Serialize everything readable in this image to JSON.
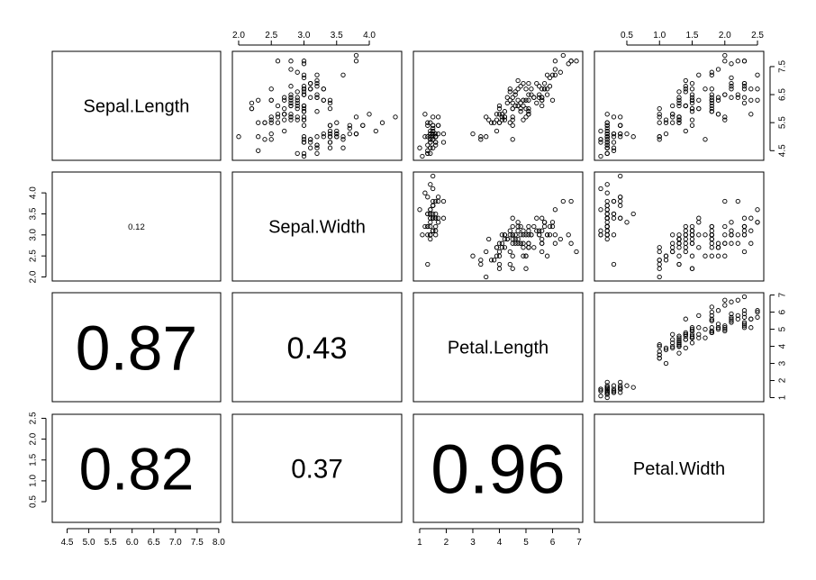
{
  "chart_data": {
    "type": "scatter",
    "variables": [
      "Sepal.Length",
      "Sepal.Width",
      "Petal.Length",
      "Petal.Width"
    ],
    "ranges": [
      [
        4.3,
        7.9
      ],
      [
        2.0,
        4.4
      ],
      [
        1.0,
        6.9
      ],
      [
        0.1,
        2.5
      ]
    ],
    "ticks": [
      [
        4.5,
        5.0,
        5.5,
        6.0,
        6.5,
        7.0,
        7.5,
        8.0
      ],
      [
        2.0,
        2.5,
        3.0,
        3.5,
        4.0
      ],
      [
        1,
        2,
        3,
        4,
        5,
        6,
        7
      ],
      [
        0.5,
        1.0,
        1.5,
        2.0,
        2.5
      ]
    ],
    "tick_labels": [
      [
        "4.5",
        "5.0",
        "5.5",
        "6.0",
        "6.5",
        "7.0",
        "7.5",
        "8.0"
      ],
      [
        "2.0",
        "2.5",
        "3.0",
        "3.5",
        "4.0"
      ],
      [
        "1",
        "2",
        "3",
        "4",
        "5",
        "6",
        "7"
      ],
      [
        "0.5",
        "1.0",
        "1.5",
        "2.0",
        "2.5"
      ]
    ],
    "right_axis_ticks": [
      4.5,
      5.5,
      6.5,
      7.5
    ],
    "right_axis_tick_labels": [
      "4.5",
      "5.5",
      "6.5",
      "7.5"
    ],
    "correlations": [
      {
        "row": 1,
        "col": 0,
        "label": "0.12",
        "value": 0.12
      },
      {
        "row": 2,
        "col": 0,
        "label": "0.87",
        "value": 0.87
      },
      {
        "row": 2,
        "col": 1,
        "label": "0.43",
        "value": 0.43
      },
      {
        "row": 3,
        "col": 0,
        "label": "0.82",
        "value": 0.82
      },
      {
        "row": 3,
        "col": 1,
        "label": "0.37",
        "value": 0.37
      },
      {
        "row": 3,
        "col": 2,
        "label": "0.96",
        "value": 0.96
      }
    ],
    "points": [
      [
        5.1,
        3.5,
        1.4,
        0.2
      ],
      [
        4.9,
        3.0,
        1.4,
        0.2
      ],
      [
        4.7,
        3.2,
        1.3,
        0.2
      ],
      [
        4.6,
        3.1,
        1.5,
        0.2
      ],
      [
        5.0,
        3.6,
        1.4,
        0.2
      ],
      [
        5.4,
        3.9,
        1.7,
        0.4
      ],
      [
        4.6,
        3.4,
        1.4,
        0.3
      ],
      [
        5.0,
        3.4,
        1.5,
        0.2
      ],
      [
        4.4,
        2.9,
        1.4,
        0.2
      ],
      [
        4.9,
        3.1,
        1.5,
        0.1
      ],
      [
        5.4,
        3.7,
        1.5,
        0.2
      ],
      [
        4.8,
        3.4,
        1.6,
        0.2
      ],
      [
        4.8,
        3.0,
        1.4,
        0.1
      ],
      [
        4.3,
        3.0,
        1.1,
        0.1
      ],
      [
        5.8,
        4.0,
        1.2,
        0.2
      ],
      [
        5.7,
        4.4,
        1.5,
        0.4
      ],
      [
        5.4,
        3.9,
        1.3,
        0.4
      ],
      [
        5.1,
        3.5,
        1.4,
        0.3
      ],
      [
        5.7,
        3.8,
        1.7,
        0.3
      ],
      [
        5.1,
        3.8,
        1.5,
        0.3
      ],
      [
        5.4,
        3.4,
        1.7,
        0.2
      ],
      [
        5.1,
        3.7,
        1.5,
        0.4
      ],
      [
        4.6,
        3.6,
        1.0,
        0.2
      ],
      [
        5.1,
        3.3,
        1.7,
        0.5
      ],
      [
        4.8,
        3.4,
        1.9,
        0.2
      ],
      [
        5.0,
        3.0,
        1.6,
        0.2
      ],
      [
        5.0,
        3.4,
        1.6,
        0.4
      ],
      [
        5.2,
        3.5,
        1.5,
        0.2
      ],
      [
        5.2,
        3.4,
        1.4,
        0.2
      ],
      [
        4.7,
        3.2,
        1.6,
        0.2
      ],
      [
        4.8,
        3.1,
        1.6,
        0.2
      ],
      [
        5.4,
        3.4,
        1.5,
        0.4
      ],
      [
        5.2,
        4.1,
        1.5,
        0.1
      ],
      [
        5.5,
        4.2,
        1.4,
        0.2
      ],
      [
        4.9,
        3.1,
        1.5,
        0.2
      ],
      [
        5.0,
        3.2,
        1.2,
        0.2
      ],
      [
        5.5,
        3.5,
        1.3,
        0.2
      ],
      [
        4.9,
        3.6,
        1.4,
        0.1
      ],
      [
        4.4,
        3.0,
        1.3,
        0.2
      ],
      [
        5.1,
        3.4,
        1.5,
        0.2
      ],
      [
        5.0,
        3.5,
        1.3,
        0.3
      ],
      [
        4.5,
        2.3,
        1.3,
        0.3
      ],
      [
        4.4,
        3.2,
        1.3,
        0.2
      ],
      [
        5.0,
        3.5,
        1.6,
        0.6
      ],
      [
        5.1,
        3.8,
        1.9,
        0.4
      ],
      [
        4.8,
        3.0,
        1.4,
        0.3
      ],
      [
        5.1,
        3.8,
        1.6,
        0.2
      ],
      [
        4.6,
        3.2,
        1.4,
        0.2
      ],
      [
        5.3,
        3.7,
        1.5,
        0.2
      ],
      [
        5.0,
        3.3,
        1.4,
        0.2
      ],
      [
        7.0,
        3.2,
        4.7,
        1.4
      ],
      [
        6.4,
        3.2,
        4.5,
        1.5
      ],
      [
        6.9,
        3.1,
        4.9,
        1.5
      ],
      [
        5.5,
        2.3,
        4.0,
        1.3
      ],
      [
        6.5,
        2.8,
        4.6,
        1.5
      ],
      [
        5.7,
        2.8,
        4.5,
        1.3
      ],
      [
        6.3,
        3.3,
        4.7,
        1.6
      ],
      [
        4.9,
        2.4,
        3.3,
        1.0
      ],
      [
        6.6,
        2.9,
        4.6,
        1.3
      ],
      [
        5.2,
        2.7,
        3.9,
        1.4
      ],
      [
        5.0,
        2.0,
        3.5,
        1.0
      ],
      [
        5.9,
        3.0,
        4.2,
        1.5
      ],
      [
        6.0,
        2.2,
        4.0,
        1.0
      ],
      [
        6.1,
        2.9,
        4.7,
        1.4
      ],
      [
        5.6,
        2.9,
        3.6,
        1.3
      ],
      [
        6.7,
        3.1,
        4.4,
        1.4
      ],
      [
        5.6,
        3.0,
        4.5,
        1.5
      ],
      [
        5.8,
        2.7,
        4.1,
        1.0
      ],
      [
        6.2,
        2.2,
        4.5,
        1.5
      ],
      [
        5.6,
        2.5,
        3.9,
        1.1
      ],
      [
        5.9,
        3.2,
        4.8,
        1.8
      ],
      [
        6.1,
        2.8,
        4.0,
        1.3
      ],
      [
        6.3,
        2.5,
        4.9,
        1.5
      ],
      [
        6.1,
        2.8,
        4.7,
        1.2
      ],
      [
        6.4,
        2.9,
        4.3,
        1.3
      ],
      [
        6.6,
        3.0,
        4.4,
        1.4
      ],
      [
        6.8,
        2.8,
        4.8,
        1.4
      ],
      [
        6.7,
        3.0,
        5.0,
        1.7
      ],
      [
        6.0,
        2.9,
        4.5,
        1.5
      ],
      [
        5.7,
        2.6,
        3.5,
        1.0
      ],
      [
        5.5,
        2.4,
        3.8,
        1.1
      ],
      [
        5.5,
        2.4,
        3.7,
        1.0
      ],
      [
        5.8,
        2.7,
        3.9,
        1.2
      ],
      [
        6.0,
        2.7,
        5.1,
        1.6
      ],
      [
        5.4,
        3.0,
        4.5,
        1.5
      ],
      [
        6.0,
        3.4,
        4.5,
        1.6
      ],
      [
        6.7,
        3.1,
        4.7,
        1.5
      ],
      [
        6.3,
        2.3,
        4.4,
        1.3
      ],
      [
        5.6,
        3.0,
        4.1,
        1.3
      ],
      [
        5.5,
        2.5,
        4.0,
        1.3
      ],
      [
        5.5,
        2.6,
        4.4,
        1.2
      ],
      [
        6.1,
        3.0,
        4.6,
        1.4
      ],
      [
        5.8,
        2.6,
        4.0,
        1.2
      ],
      [
        5.0,
        2.3,
        3.3,
        1.0
      ],
      [
        5.6,
        2.7,
        4.2,
        1.3
      ],
      [
        5.7,
        3.0,
        4.2,
        1.2
      ],
      [
        5.7,
        2.9,
        4.2,
        1.3
      ],
      [
        6.2,
        2.9,
        4.3,
        1.3
      ],
      [
        5.1,
        2.5,
        3.0,
        1.1
      ],
      [
        5.7,
        2.8,
        4.1,
        1.3
      ],
      [
        6.3,
        3.3,
        6.0,
        2.5
      ],
      [
        5.8,
        2.7,
        5.1,
        1.9
      ],
      [
        7.1,
        3.0,
        5.9,
        2.1
      ],
      [
        6.3,
        2.9,
        5.6,
        1.8
      ],
      [
        6.5,
        3.0,
        5.8,
        2.2
      ],
      [
        7.6,
        3.0,
        6.6,
        2.1
      ],
      [
        4.9,
        2.5,
        4.5,
        1.7
      ],
      [
        7.3,
        2.9,
        6.3,
        1.8
      ],
      [
        6.7,
        2.5,
        5.8,
        1.8
      ],
      [
        7.2,
        3.6,
        6.1,
        2.5
      ],
      [
        6.5,
        3.2,
        5.1,
        2.0
      ],
      [
        6.4,
        2.7,
        5.3,
        1.9
      ],
      [
        6.8,
        3.0,
        5.5,
        2.1
      ],
      [
        5.7,
        2.5,
        5.0,
        2.0
      ],
      [
        5.8,
        2.8,
        5.1,
        2.4
      ],
      [
        6.4,
        3.2,
        5.3,
        2.3
      ],
      [
        6.5,
        3.0,
        5.5,
        1.8
      ],
      [
        7.7,
        3.8,
        6.7,
        2.2
      ],
      [
        7.7,
        2.6,
        6.9,
        2.3
      ],
      [
        6.0,
        2.2,
        5.0,
        1.5
      ],
      [
        6.9,
        3.2,
        5.7,
        2.3
      ],
      [
        5.6,
        2.8,
        4.9,
        2.0
      ],
      [
        7.7,
        2.8,
        6.7,
        2.0
      ],
      [
        6.3,
        2.7,
        4.9,
        1.8
      ],
      [
        6.7,
        3.3,
        5.7,
        2.1
      ],
      [
        7.2,
        3.2,
        6.0,
        1.8
      ],
      [
        6.2,
        2.8,
        4.8,
        1.8
      ],
      [
        6.1,
        3.0,
        4.9,
        1.8
      ],
      [
        6.4,
        2.8,
        5.6,
        2.1
      ],
      [
        7.2,
        3.0,
        5.8,
        1.6
      ],
      [
        7.4,
        2.8,
        6.1,
        1.9
      ],
      [
        7.9,
        3.8,
        6.4,
        2.0
      ],
      [
        6.4,
        2.8,
        5.6,
        2.2
      ],
      [
        6.3,
        2.8,
        5.1,
        1.5
      ],
      [
        6.1,
        2.6,
        5.6,
        1.4
      ],
      [
        7.7,
        3.0,
        6.1,
        2.3
      ],
      [
        6.3,
        3.4,
        5.6,
        2.4
      ],
      [
        6.4,
        3.1,
        5.5,
        1.8
      ],
      [
        6.0,
        3.0,
        4.8,
        1.8
      ],
      [
        6.9,
        3.1,
        5.4,
        2.1
      ],
      [
        6.7,
        3.1,
        5.6,
        2.4
      ],
      [
        6.9,
        3.1,
        5.1,
        2.3
      ],
      [
        5.8,
        2.7,
        5.1,
        1.9
      ],
      [
        6.8,
        3.2,
        5.9,
        2.3
      ],
      [
        6.7,
        3.3,
        5.7,
        2.5
      ],
      [
        6.7,
        3.0,
        5.2,
        2.3
      ],
      [
        6.3,
        2.5,
        5.0,
        1.9
      ],
      [
        6.5,
        3.0,
        5.2,
        2.0
      ],
      [
        6.2,
        3.4,
        5.4,
        2.3
      ],
      [
        5.9,
        3.0,
        5.1,
        1.8
      ]
    ]
  }
}
